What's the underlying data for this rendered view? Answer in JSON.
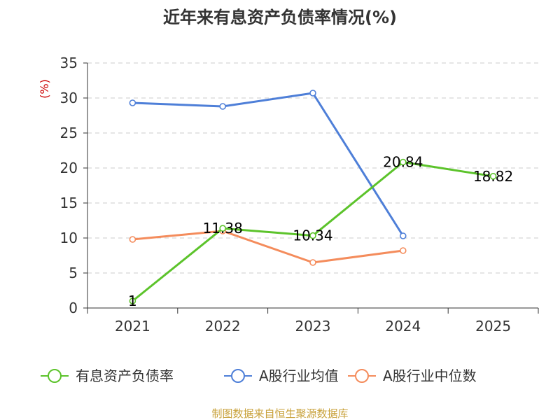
{
  "chart_data": {
    "type": "line",
    "title": "近年来有息资产负债率情况(%)",
    "ylabel": "(%)",
    "xlabel": "",
    "categories": [
      "2021",
      "2022",
      "2023",
      "2024",
      "2025"
    ],
    "ylim": [
      0,
      35
    ],
    "yticks": [
      "0",
      "5",
      "10",
      "15",
      "20",
      "25",
      "30",
      "35"
    ],
    "grid": true,
    "legend_position": "bottom",
    "series": [
      {
        "name": "有息资产负债率",
        "color": "#5cc32b",
        "values": [
          1,
          11.38,
          10.34,
          20.84,
          18.82
        ],
        "labels": [
          "1",
          "11.38",
          "10.34",
          "20.84",
          "18.82"
        ]
      },
      {
        "name": "A股行业均值",
        "color": "#4e7fd8",
        "values": [
          29.3,
          28.8,
          30.7,
          10.3,
          null
        ]
      },
      {
        "name": "A股行业中位数",
        "color": "#f48c5c",
        "values": [
          9.8,
          11.0,
          6.5,
          8.2,
          null
        ]
      }
    ]
  },
  "source": "制图数据来自恒生聚源数据库"
}
